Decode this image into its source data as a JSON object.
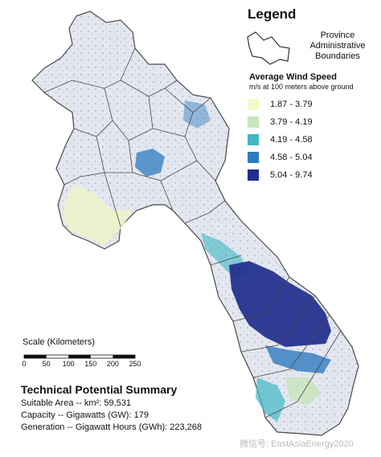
{
  "legend": {
    "title": "Legend",
    "boundary_label": "Province Administrative Boundaries",
    "wind_title": "Average Wind Speed",
    "wind_subtitle": "m/s at 100 meters above ground",
    "classes": [
      {
        "label": "1.87 - 3.79",
        "color": "#f6f9c8"
      },
      {
        "label": "3.79 - 4.19",
        "color": "#c7e6ba"
      },
      {
        "label": "4.19 - 4.58",
        "color": "#40b8c4"
      },
      {
        "label": "4.58 - 5.04",
        "color": "#2f7bbf"
      },
      {
        "label": "5.04 - 9.74",
        "color": "#1f2e8c"
      }
    ]
  },
  "scale": {
    "title": "Scale (Kilometers)",
    "ticks": [
      "0",
      "50",
      "100",
      "150",
      "200",
      "250"
    ]
  },
  "summary": {
    "title": "Technical Potential Summary",
    "lines": [
      "Suitable Area -- km²: 59,531",
      "Capacity -- Gigawatts (GW): 179",
      "Generation -- Gigawatt Hours (GWh): 223,268"
    ]
  },
  "watermark": "微信号: EastAsiaEnergy2020",
  "map_colors": {
    "land": "#e4e7ee",
    "boundary": "#4a4a4a",
    "pale": "#eef3c8"
  }
}
